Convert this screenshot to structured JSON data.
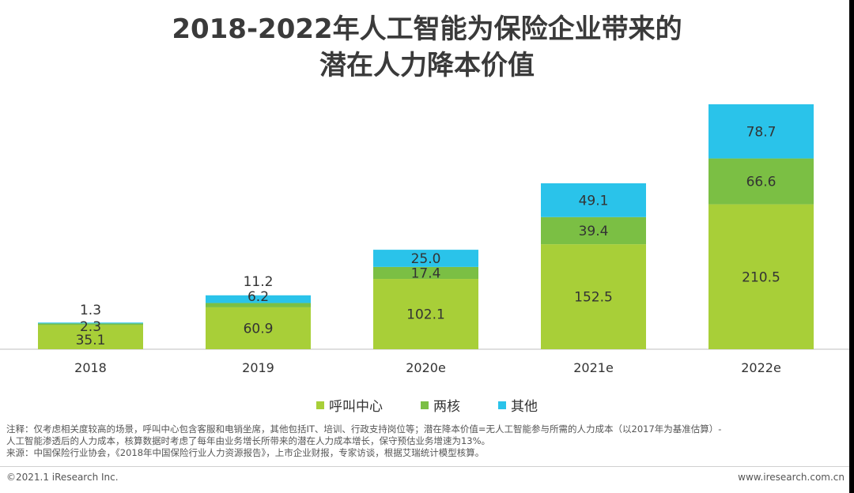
{
  "title_line1": "2018-2022年人工智能为保险企业带来的",
  "title_line2": "潜在人力降本价值",
  "chart_data": {
    "type": "bar",
    "stacked": true,
    "categories": [
      "2018",
      "2019",
      "2020e",
      "2021e",
      "2022e"
    ],
    "series": [
      {
        "name": "呼叫中心",
        "color": "#a8cf38",
        "values": [
          35.1,
          60.9,
          102.1,
          152.5,
          210.5
        ]
      },
      {
        "name": "两核",
        "color": "#7bbf44",
        "values": [
          2.3,
          6.2,
          17.4,
          39.4,
          66.6
        ]
      },
      {
        "name": "其他",
        "color": "#2ac3ea",
        "values": [
          1.3,
          11.2,
          25.0,
          49.1,
          78.7
        ]
      }
    ],
    "labels": [
      [
        "35.1",
        "60.9",
        "102.1",
        "152.5",
        "210.5"
      ],
      [
        "2.3",
        "6.2",
        "17.4",
        "39.4",
        "66.6"
      ],
      [
        "1.3",
        "11.2",
        "25.0",
        "49.1",
        "78.7"
      ]
    ],
    "ylim": [
      0,
      360
    ],
    "legend_position": "bottom"
  },
  "legend": {
    "items": [
      "呼叫中心",
      "两核",
      "其他"
    ]
  },
  "notes": {
    "line1": "注释：仅考虑相关度较高的场景，呼叫中心包含客服和电销坐席，其他包括IT、培训、行政支持岗位等；潜在降本价值=无人工智能参与所需的人力成本（以2017年为基准估算）-",
    "line2": "人工智能渗透后的人力成本，核算数据时考虑了每年由业务增长所带来的潜在人力成本增长，保守预估业务增速为13%。",
    "line3": "来源：中国保险行业协会，《2018年中国保险行业人力资源报告》，上市企业财报，专家访谈，根据艾瑞统计模型核算。"
  },
  "footer": {
    "copyright": "©2021.1 iResearch Inc.",
    "website": "www.iresearch.com.cn"
  }
}
